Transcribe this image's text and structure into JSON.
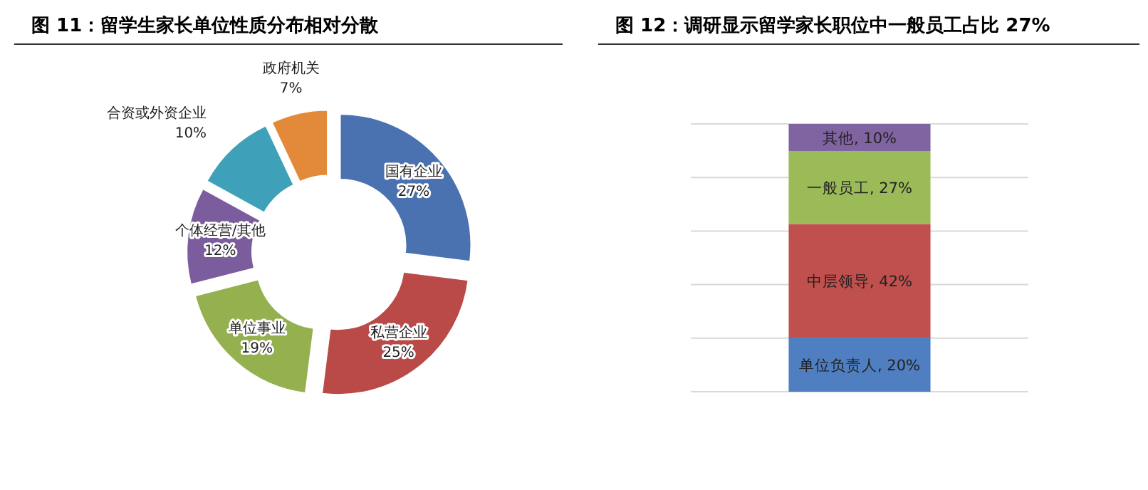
{
  "chart_data": [
    {
      "type": "donut",
      "title": "图 11：留学生家长单位性质分布相对分散",
      "categories": [
        "国有企业",
        "私营企业",
        "单位事业",
        "个体经营/其他",
        "合资或外资企业",
        "政府机关"
      ],
      "values": [
        27,
        25,
        19,
        12,
        10,
        7
      ],
      "colors": [
        "#4a72b0",
        "#b94a48",
        "#95b14f",
        "#7b5c9c",
        "#3fa1b9",
        "#e38a3a"
      ],
      "value_labels": [
        "27%",
        "25%",
        "19%",
        "12%",
        "10%",
        "7%"
      ]
    },
    {
      "type": "bar",
      "stacked": true,
      "title": "图 12：调研显示留学家长职位中一般员工占比 27%",
      "categories": [
        null
      ],
      "grid": "y",
      "series": [
        {
          "color": "#4f7fc0",
          "values": [
            20
          ],
          "value_labels": [
            "单位负责人, 20%"
          ]
        },
        {
          "color": "#c0504d",
          "values": [
            42
          ],
          "value_labels": [
            "中层领导, 42%"
          ]
        },
        {
          "color": "#9bbb59",
          "values": [
            27
          ],
          "value_labels": [
            "一般员工, 27%"
          ]
        },
        {
          "color": "#8064a2",
          "values": [
            10
          ],
          "value_labels": [
            "其他, 10%"
          ]
        }
      ]
    }
  ]
}
